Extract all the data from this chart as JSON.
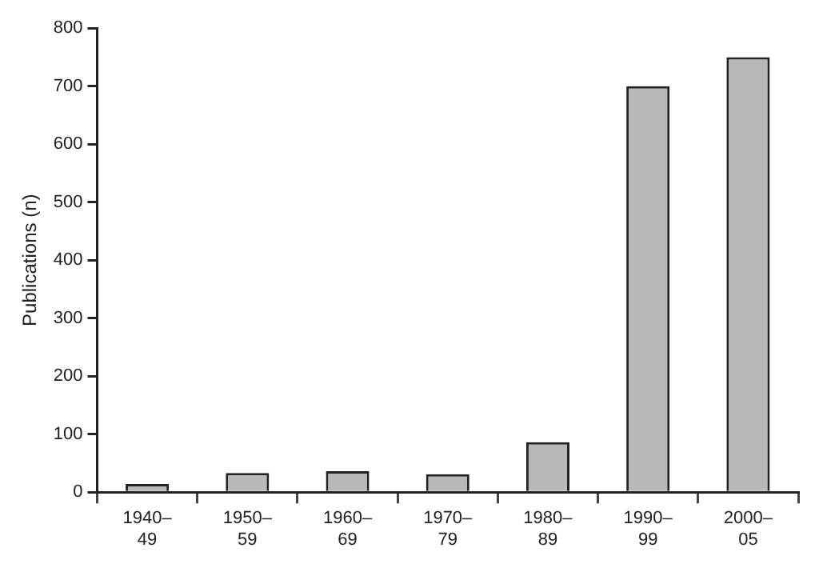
{
  "chart_data": {
    "type": "bar",
    "ylabel": "Publications (n)",
    "categories": [
      "1940–49",
      "1950–59",
      "1960–69",
      "1970–79",
      "1980–89",
      "1990–99",
      "2000–05"
    ],
    "values": [
      14,
      33,
      36,
      31,
      86,
      700,
      750
    ],
    "color": "#b8b8b8",
    "ylim": [
      0,
      800
    ],
    "yticks": [
      0,
      100,
      200,
      300,
      400,
      500,
      600,
      700,
      800
    ],
    "grid": false,
    "legend": false
  }
}
